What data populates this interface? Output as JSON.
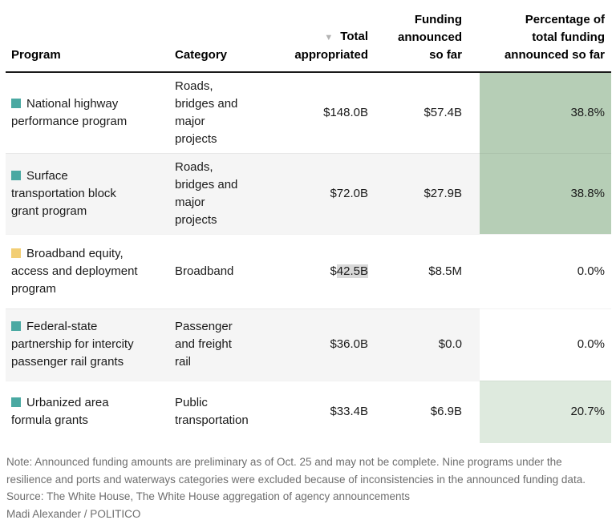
{
  "colors": {
    "teal_marker": "#4aa9a2",
    "gold_marker": "#f2ce74",
    "green_strong": "#b6ceb6",
    "green_light": "#deeade",
    "cell_white": "#ffffff",
    "alt_row_gray": "#f5f5f5",
    "value_highlight": "#d9d9d9",
    "footer_gray": "#6e6e6e"
  },
  "header": {
    "sort_indicator": "▼",
    "col_program": "Program",
    "col_category": "Category",
    "col_total": "Total\nappropriated",
    "col_funding": "Funding\nannounced\nso far",
    "col_percentage": "Percentage of\ntotal funding\nannounced so far"
  },
  "table": {
    "rows": [
      {
        "marker_color": "#4aa9a2",
        "program": "National highway\nperformance program",
        "category": "Roads,\nbridges and\nmajor\nprojects",
        "total": "$148.0B",
        "funding": "$57.4B",
        "pct": "38.8%",
        "pct_bg": "#b6ceb6"
      },
      {
        "marker_color": "#4aa9a2",
        "program": "Surface\ntransportation block\ngrant program",
        "category": "Roads,\nbridges and\nmajor\nprojects",
        "total": "$72.0B",
        "funding": "$27.9B",
        "pct": "38.8%",
        "pct_bg": "#b6ceb6"
      },
      {
        "marker_color": "#f2ce74",
        "program": "Broadband equity,\naccess and deployment\nprogram",
        "category": "Broadband",
        "total_currency": "$",
        "total_value": "42.5B",
        "funding": "$8.5M",
        "pct": "0.0%",
        "pct_bg": "#ffffff"
      },
      {
        "marker_color": "#4aa9a2",
        "program": "Federal-state\npartnership for intercity\npassenger rail grants",
        "category": "Passenger\nand freight\nrail",
        "total": "$36.0B",
        "funding": "$0.0",
        "pct": "0.0%",
        "pct_bg": "#ffffff"
      },
      {
        "marker_color": "#4aa9a2",
        "program": "Urbanized area\nformula grants",
        "category": "Public\ntransportation",
        "total": "$33.4B",
        "funding": "$6.9B",
        "pct": "20.7%",
        "pct_bg": "#deeade"
      }
    ]
  },
  "footer": {
    "note": "Note: Announced funding amounts are preliminary as of Oct. 25 and may not be complete. Nine programs under the resilience and ports and waterways categories were excluded because of inconsistencies in the announced funding data.",
    "source": "Source: The White House, The White House aggregation of agency announcements",
    "credit": "Madi Alexander / POLITICO"
  },
  "chart_data": {
    "type": "table",
    "columns": [
      "Program",
      "Category",
      "Total appropriated",
      "Funding announced so far",
      "Percentage of total funding announced so far"
    ],
    "rows": [
      [
        "National highway performance program",
        "Roads, bridges and major projects",
        "$148.0B",
        "$57.4B",
        "38.8%"
      ],
      [
        "Surface transportation block grant program",
        "Roads, bridges and major projects",
        "$72.0B",
        "$27.9B",
        "38.8%"
      ],
      [
        "Broadband equity, access and deployment program",
        "Broadband",
        "$42.5B",
        "$8.5M",
        "0.0%"
      ],
      [
        "Federal-state partnership for intercity passenger rail grants",
        "Passenger and freight rail",
        "$36.0B",
        "$0.0",
        "0.0%"
      ],
      [
        "Urbanized area formula grants",
        "Public transportation",
        "$33.4B",
        "$6.9B",
        "20.7%"
      ]
    ],
    "sort": "Total appropriated, descending",
    "category_marker_colors": [
      "teal",
      "teal",
      "gold",
      "teal",
      "teal"
    ],
    "percentage_cell_shading": [
      "#b6ceb6",
      "#b6ceb6",
      "#ffffff",
      "#ffffff",
      "#deeade"
    ],
    "highlighted_value": "$42.5B"
  }
}
